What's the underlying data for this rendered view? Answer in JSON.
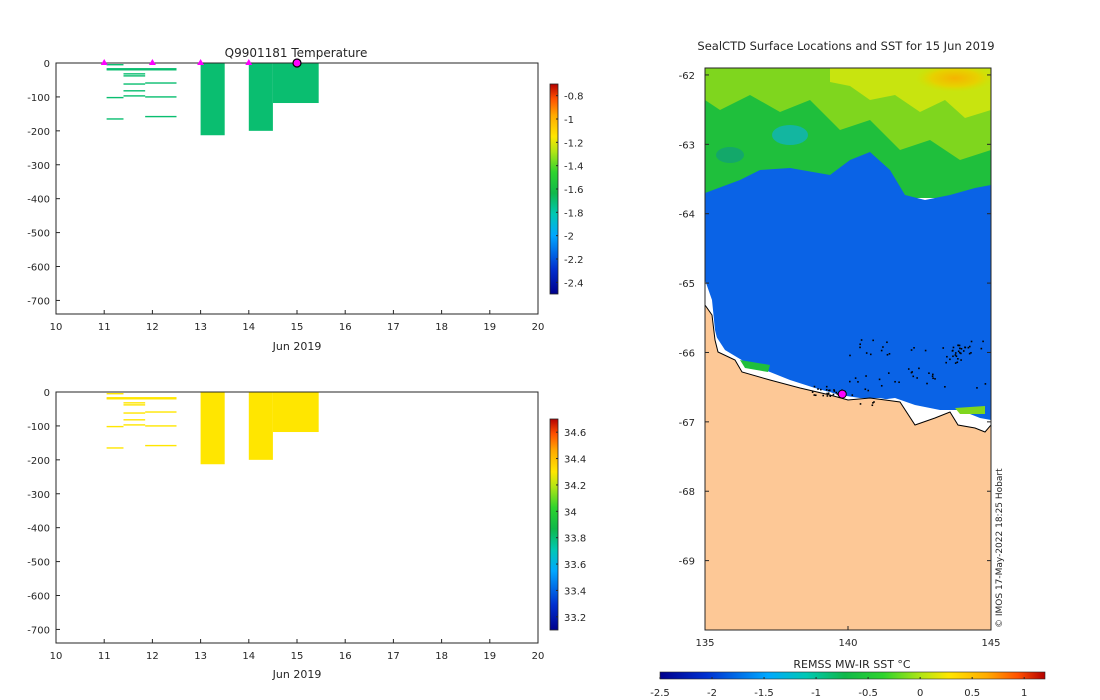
{
  "chart_data": [
    {
      "id": "temperature",
      "type": "heatmap",
      "title": "Q9901181  Temperature",
      "xlabel": "Jun 2019",
      "ylabel": "",
      "xlim": [
        10,
        20
      ],
      "ylim": [
        -740,
        0
      ],
      "xticks": [
        10,
        11,
        12,
        13,
        14,
        15,
        16,
        17,
        18,
        19,
        20
      ],
      "yticks": [
        0,
        -100,
        -200,
        -300,
        -400,
        -500,
        -600,
        -700
      ],
      "cell_value": -1.7,
      "colorbar": {
        "min": -2.5,
        "max": -0.7,
        "ticks": [
          -0.8,
          -1,
          -1.2,
          -1.4,
          -1.6,
          -1.8,
          -2,
          -2.2,
          -2.4
        ]
      },
      "profiles": [
        {
          "t0": 13.0,
          "t1": 13.5,
          "depth": 213
        },
        {
          "t0": 14.0,
          "t1": 14.5,
          "depth": 200
        },
        {
          "t0": 14.5,
          "t1": 15.45,
          "depth": 118
        }
      ],
      "short_profiles": [
        {
          "t0": 11.05,
          "t1": 11.4,
          "depth": 5
        },
        {
          "t0": 11.05,
          "t1": 12.5,
          "depth": 17
        },
        {
          "t0": 11.05,
          "t1": 12.5,
          "depth": 20
        },
        {
          "t0": 11.4,
          "t1": 11.85,
          "depth": 32
        },
        {
          "t0": 11.4,
          "t1": 11.85,
          "depth": 38
        },
        {
          "t0": 11.85,
          "t1": 12.5,
          "depth": 59
        },
        {
          "t0": 11.4,
          "t1": 11.85,
          "depth": 62
        },
        {
          "t0": 11.4,
          "t1": 11.85,
          "depth": 82
        },
        {
          "t0": 11.4,
          "t1": 11.85,
          "depth": 97
        },
        {
          "t0": 11.85,
          "t1": 12.5,
          "depth": 100
        },
        {
          "t0": 11.05,
          "t1": 11.4,
          "depth": 102
        },
        {
          "t0": 11.85,
          "t1": 12.5,
          "depth": 158
        },
        {
          "t0": 11.05,
          "t1": 11.4,
          "depth": 165
        }
      ],
      "markers": [
        11,
        12,
        13,
        14
      ],
      "current_marker": 15
    },
    {
      "id": "salinity",
      "type": "heatmap",
      "title": "",
      "xlabel": "Jun 2019",
      "ylabel": "",
      "xlim": [
        10,
        20
      ],
      "ylim": [
        -740,
        0
      ],
      "xticks": [
        10,
        11,
        12,
        13,
        14,
        15,
        16,
        17,
        18,
        19,
        20
      ],
      "yticks": [
        0,
        -100,
        -200,
        -300,
        -400,
        -500,
        -600,
        -700
      ],
      "cell_value": 34.3,
      "colorbar": {
        "min": 33.1,
        "max": 34.7,
        "ticks": [
          34.6,
          34.4,
          34.2,
          34,
          33.8,
          33.6,
          33.4,
          33.2
        ]
      },
      "profiles": [
        {
          "t0": 13.0,
          "t1": 13.5,
          "depth": 213
        },
        {
          "t0": 14.0,
          "t1": 14.5,
          "depth": 200
        },
        {
          "t0": 14.5,
          "t1": 15.45,
          "depth": 118
        }
      ],
      "short_profiles": [
        {
          "t0": 11.05,
          "t1": 11.4,
          "depth": 5
        },
        {
          "t0": 11.05,
          "t1": 12.5,
          "depth": 17
        },
        {
          "t0": 11.05,
          "t1": 12.5,
          "depth": 20
        },
        {
          "t0": 11.4,
          "t1": 11.85,
          "depth": 32
        },
        {
          "t0": 11.4,
          "t1": 11.85,
          "depth": 38
        },
        {
          "t0": 11.85,
          "t1": 12.5,
          "depth": 59
        },
        {
          "t0": 11.4,
          "t1": 11.85,
          "depth": 62
        },
        {
          "t0": 11.4,
          "t1": 11.85,
          "depth": 82
        },
        {
          "t0": 11.4,
          "t1": 11.85,
          "depth": 97
        },
        {
          "t0": 11.85,
          "t1": 12.5,
          "depth": 100
        },
        {
          "t0": 11.05,
          "t1": 11.4,
          "depth": 102
        },
        {
          "t0": 11.85,
          "t1": 12.5,
          "depth": 158
        },
        {
          "t0": 11.05,
          "t1": 11.4,
          "depth": 165
        }
      ]
    },
    {
      "id": "sst_map",
      "type": "heatmap",
      "title": "SealCTD Surface Locations and SST for 15 Jun 2019",
      "xlabel": "",
      "ylabel": "",
      "xlim": [
        135,
        145
      ],
      "ylim": [
        -70,
        -61.9
      ],
      "xticks": [
        135,
        140,
        145
      ],
      "yticks": [
        -62,
        -63,
        -64,
        -65,
        -66,
        -67,
        -68,
        -69
      ],
      "current_position": {
        "lon": 139.8,
        "lat": -66.6
      },
      "colorbar": {
        "label": "REMSS MW-IR SST °C",
        "min": -2.5,
        "max": 1.2,
        "ticks": [
          -2.5,
          -2,
          -1.5,
          -1,
          -0.5,
          0,
          0.5,
          1
        ]
      },
      "credit": "© IMOS 17-May-2022 18:25 Hobart"
    }
  ],
  "colors": {
    "temperature_cell": "#17c48f",
    "salinity_cell": "#f5a00c",
    "sea_ice": "#0a63e6",
    "land": "#fdc896",
    "marker": "#ff00ff"
  }
}
